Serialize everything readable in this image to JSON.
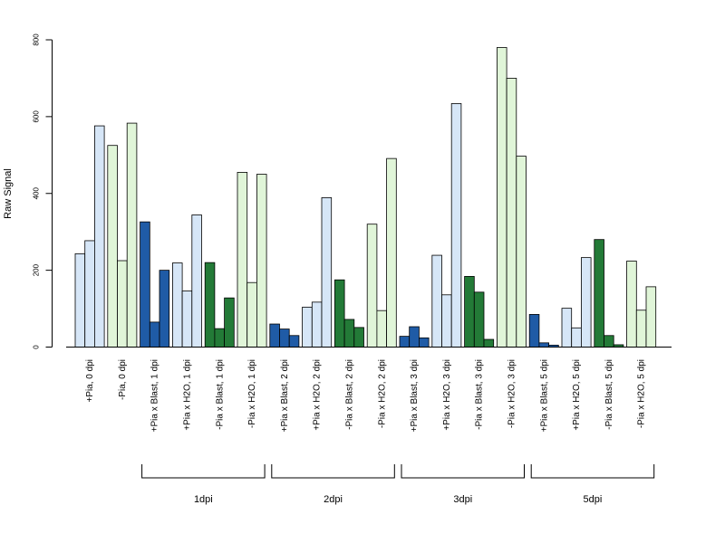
{
  "chart_data": {
    "type": "bar",
    "title": "",
    "xlabel": "",
    "ylabel": "Raw Signal",
    "ylim": [
      0,
      800
    ],
    "yticks": [
      0,
      200,
      400,
      600,
      800
    ],
    "grid": false,
    "colors": {
      "+Pia x Blast": "#1f5ba6",
      "+Pia control": "#d6e6f7",
      "-Pia x Blast": "#237a37",
      "-Pia control": "#e0f5d8",
      "bar_edge": "#000000"
    },
    "categories": [
      {
        "label": "+Pia, 0 dpi",
        "color": "#d6e6f7",
        "values": [
          243,
          277,
          576
        ]
      },
      {
        "label": "-Pia, 0 dpi",
        "color": "#e0f5d8",
        "values": [
          525,
          225,
          583
        ]
      },
      {
        "label": "+Pia x Blast, 1 dpi",
        "color": "#1f5ba6",
        "values": [
          326,
          65,
          200
        ]
      },
      {
        "label": "+Pia x H2O, 1 dpi",
        "color": "#d6e6f7",
        "values": [
          219,
          146,
          344
        ]
      },
      {
        "label": "-Pia x Blast, 1 dpi",
        "color": "#237a37",
        "values": [
          220,
          48,
          128
        ]
      },
      {
        "label": "-Pia x H2O, 1 dpi",
        "color": "#e0f5d8",
        "values": [
          455,
          168,
          450
        ]
      },
      {
        "label": "+Pia x Blast, 2 dpi",
        "color": "#1f5ba6",
        "values": [
          60,
          47,
          30
        ]
      },
      {
        "label": "+Pia x H2O, 2 dpi",
        "color": "#d6e6f7",
        "values": [
          104,
          117,
          389
        ]
      },
      {
        "label": "-Pia x Blast, 2 dpi",
        "color": "#237a37",
        "values": [
          175,
          72,
          51
        ]
      },
      {
        "label": "-Pia x H2O, 2 dpi",
        "color": "#e0f5d8",
        "values": [
          320,
          95,
          491
        ]
      },
      {
        "label": "+Pia x Blast, 3 dpi",
        "color": "#1f5ba6",
        "values": [
          28,
          53,
          24
        ]
      },
      {
        "label": "+Pia x H2O, 3 dpi",
        "color": "#d6e6f7",
        "values": [
          239,
          136,
          634
        ]
      },
      {
        "label": "-Pia x Blast, 3 dpi",
        "color": "#237a37",
        "values": [
          184,
          143,
          20
        ]
      },
      {
        "label": "-Pia x H2O, 3 dpi",
        "color": "#e0f5d8",
        "values": [
          780,
          700,
          497
        ]
      },
      {
        "label": "+Pia x Blast, 5 dpi",
        "color": "#1f5ba6",
        "values": [
          85,
          11,
          5
        ]
      },
      {
        "label": "+Pia x H2O, 5 dpi",
        "color": "#d6e6f7",
        "values": [
          101,
          50,
          233
        ]
      },
      {
        "label": "-Pia x Blast, 5 dpi",
        "color": "#237a37",
        "values": [
          280,
          30,
          6
        ]
      },
      {
        "label": "-Pia x H2O, 5 dpi",
        "color": "#e0f5d8",
        "values": [
          224,
          96,
          157
        ]
      }
    ],
    "groups": [
      {
        "label": "1dpi",
        "from": 2,
        "to": 5
      },
      {
        "label": "2dpi",
        "from": 6,
        "to": 9
      },
      {
        "label": "3dpi",
        "from": 10,
        "to": 13
      },
      {
        "label": "5dpi",
        "from": 14,
        "to": 17
      }
    ]
  }
}
